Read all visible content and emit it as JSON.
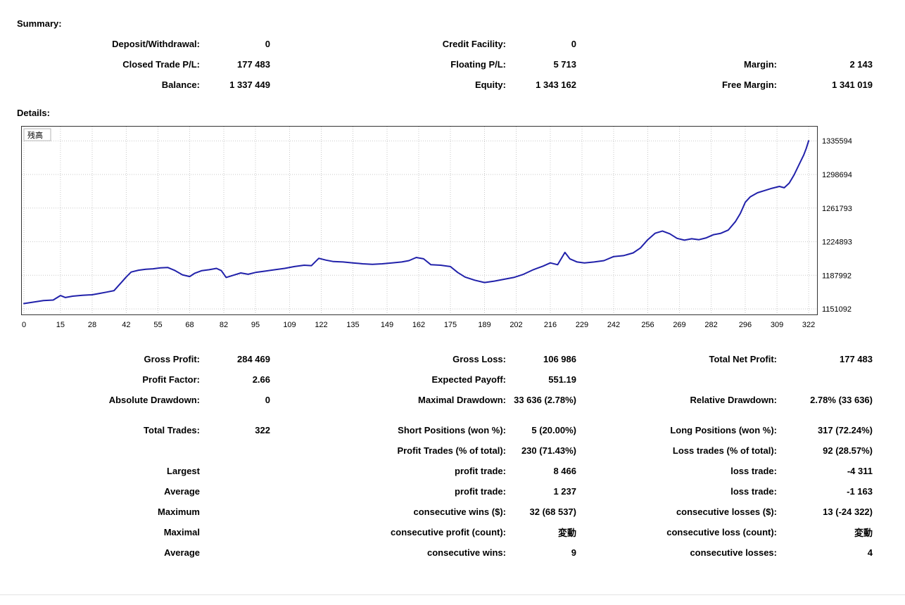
{
  "summary": {
    "heading": "Summary:",
    "rows": [
      [
        "Deposit/Withdrawal:",
        "0",
        "Credit Facility:",
        "0",
        "",
        ""
      ],
      [
        "Closed Trade P/L:",
        "177 483",
        "Floating P/L:",
        "5 713",
        "Margin:",
        "2 143"
      ],
      [
        "Balance:",
        "1 337 449",
        "Equity:",
        "1 343 162",
        "Free Margin:",
        "1 341 019"
      ]
    ]
  },
  "details": {
    "heading": "Details:"
  },
  "stats": {
    "results_rows": [
      [
        "Gross Profit:",
        "284 469",
        "Gross Loss:",
        "106 986",
        "Total Net Profit:",
        "177 483"
      ],
      [
        "Profit Factor:",
        "2.66",
        "Expected Payoff:",
        "551.19",
        "",
        ""
      ],
      [
        "Absolute Drawdown:",
        "0",
        "Maximal Drawdown:",
        "33 636 (2.78%)",
        "Relative Drawdown:",
        "2.78% (33 636)"
      ]
    ],
    "trades_rows": [
      [
        "Total Trades:",
        "322",
        "Short Positions (won %):",
        "5 (20.00%)",
        "Long Positions (won %):",
        "317 (72.24%)"
      ],
      [
        "",
        "",
        "Profit Trades (% of total):",
        "230 (71.43%)",
        "Loss trades (% of total):",
        "92 (28.57%)"
      ],
      [
        "Largest",
        "",
        "profit trade:",
        "8 466",
        "loss trade:",
        "-4 311"
      ],
      [
        "Average",
        "",
        "profit trade:",
        "1 237",
        "loss trade:",
        "-1 163"
      ],
      [
        "Maximum",
        "",
        "consecutive wins ($):",
        "32 (68 537)",
        "consecutive losses ($):",
        "13 (-24 322)"
      ],
      [
        "Maximal",
        "",
        "consecutive profit (count):",
        "変動",
        "consecutive loss (count):",
        "変動"
      ],
      [
        "Average",
        "",
        "consecutive wins:",
        "9",
        "consecutive losses:",
        "4"
      ]
    ]
  },
  "chart_data": {
    "type": "line",
    "title": "残高",
    "series_name": "残高 (Balance)",
    "xlabel": "",
    "ylabel": "",
    "line_color": "#2121aa",
    "grid_on": true,
    "x_ticks": [
      0,
      15,
      28,
      42,
      55,
      68,
      82,
      95,
      109,
      122,
      135,
      149,
      162,
      175,
      189,
      202,
      216,
      229,
      242,
      256,
      269,
      282,
      296,
      309,
      322
    ],
    "y_ticks": [
      1151092,
      1187992,
      1224893,
      1261793,
      1298694,
      1335594
    ],
    "xlim": [
      0,
      324
    ],
    "ylim": [
      1145000,
      1352000
    ],
    "points": [
      [
        0,
        1157000
      ],
      [
        4,
        1158600
      ],
      [
        8,
        1160200
      ],
      [
        12,
        1160800
      ],
      [
        15,
        1165800
      ],
      [
        17,
        1163600
      ],
      [
        20,
        1165100
      ],
      [
        24,
        1166100
      ],
      [
        28,
        1166600
      ],
      [
        31,
        1168100
      ],
      [
        34,
        1169600
      ],
      [
        37,
        1171200
      ],
      [
        40,
        1180200
      ],
      [
        42,
        1186200
      ],
      [
        44,
        1191600
      ],
      [
        47,
        1193600
      ],
      [
        50,
        1194600
      ],
      [
        53,
        1195100
      ],
      [
        56,
        1196200
      ],
      [
        59,
        1196600
      ],
      [
        62,
        1193200
      ],
      [
        65,
        1188600
      ],
      [
        68,
        1186600
      ],
      [
        70,
        1190100
      ],
      [
        73,
        1193100
      ],
      [
        76,
        1194100
      ],
      [
        79,
        1195600
      ],
      [
        81,
        1193100
      ],
      [
        83,
        1185600
      ],
      [
        86,
        1188100
      ],
      [
        89,
        1190600
      ],
      [
        92,
        1189100
      ],
      [
        95,
        1191100
      ],
      [
        99,
        1192600
      ],
      [
        103,
        1194100
      ],
      [
        107,
        1195600
      ],
      [
        111,
        1197600
      ],
      [
        115,
        1199100
      ],
      [
        118,
        1198600
      ],
      [
        121,
        1206600
      ],
      [
        124,
        1204600
      ],
      [
        127,
        1203100
      ],
      [
        131,
        1202600
      ],
      [
        135,
        1201600
      ],
      [
        139,
        1200600
      ],
      [
        143,
        1200100
      ],
      [
        147,
        1200600
      ],
      [
        151,
        1201600
      ],
      [
        155,
        1202600
      ],
      [
        158,
        1204100
      ],
      [
        161,
        1207600
      ],
      [
        164,
        1206100
      ],
      [
        167,
        1199600
      ],
      [
        171,
        1199100
      ],
      [
        175,
        1197600
      ],
      [
        178,
        1191100
      ],
      [
        181,
        1186100
      ],
      [
        185,
        1182600
      ],
      [
        189,
        1180100
      ],
      [
        193,
        1181600
      ],
      [
        197,
        1183600
      ],
      [
        201,
        1185600
      ],
      [
        205,
        1189100
      ],
      [
        209,
        1194100
      ],
      [
        213,
        1198100
      ],
      [
        216,
        1201600
      ],
      [
        219,
        1199600
      ],
      [
        222,
        1213100
      ],
      [
        224,
        1206100
      ],
      [
        227,
        1202600
      ],
      [
        230,
        1201600
      ],
      [
        234,
        1202600
      ],
      [
        238,
        1204100
      ],
      [
        242,
        1208600
      ],
      [
        246,
        1209600
      ],
      [
        250,
        1212600
      ],
      [
        253,
        1218100
      ],
      [
        256,
        1227100
      ],
      [
        259,
        1234100
      ],
      [
        262,
        1236600
      ],
      [
        265,
        1233600
      ],
      [
        268,
        1228600
      ],
      [
        271,
        1226600
      ],
      [
        274,
        1228100
      ],
      [
        277,
        1227100
      ],
      [
        280,
        1229100
      ],
      [
        283,
        1232600
      ],
      [
        286,
        1234100
      ],
      [
        289,
        1237600
      ],
      [
        292,
        1247100
      ],
      [
        294,
        1256100
      ],
      [
        296,
        1268100
      ],
      [
        298,
        1274100
      ],
      [
        301,
        1278600
      ],
      [
        304,
        1281100
      ],
      [
        307,
        1283600
      ],
      [
        310,
        1285600
      ],
      [
        312,
        1284100
      ],
      [
        314,
        1289100
      ],
      [
        316,
        1298100
      ],
      [
        318,
        1309100
      ],
      [
        320,
        1320100
      ],
      [
        321,
        1327100
      ],
      [
        322,
        1335594
      ]
    ]
  }
}
